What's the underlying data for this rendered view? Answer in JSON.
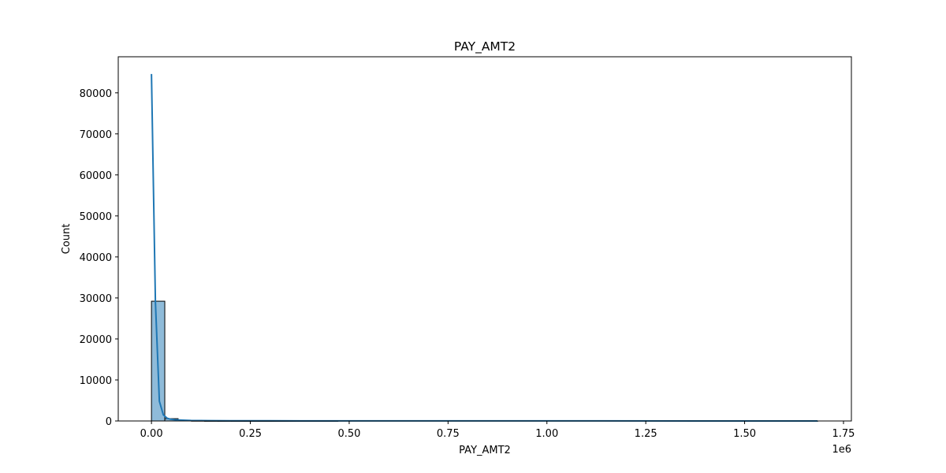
{
  "chart_data": {
    "type": "bar",
    "title": "PAY_AMT2",
    "xlabel": "PAY_AMT2",
    "ylabel": "Count",
    "x_offset_text": "1e6",
    "xlim": [
      -84000,
      1770000
    ],
    "ylim": [
      0,
      88800
    ],
    "x_ticks": [
      0,
      250000,
      500000,
      750000,
      1000000,
      1250000,
      1500000,
      1750000
    ],
    "x_tick_labels": [
      "0.00",
      "0.25",
      "0.50",
      "0.75",
      "1.00",
      "1.25",
      "1.50",
      "1.75"
    ],
    "y_ticks": [
      0,
      10000,
      20000,
      30000,
      40000,
      50000,
      60000,
      70000,
      80000
    ],
    "y_tick_labels": [
      "0",
      "10000",
      "20000",
      "30000",
      "40000",
      "50000",
      "60000",
      "70000",
      "80000"
    ],
    "bins": {
      "start": 0,
      "end": 1684259,
      "count": 50,
      "counts": [
        29200,
        560,
        140,
        50,
        20,
        12,
        8,
        5,
        3,
        2,
        2,
        1,
        1,
        1,
        0,
        0,
        0,
        0,
        0,
        0,
        0,
        0,
        0,
        0,
        0,
        0,
        0,
        0,
        0,
        0,
        0,
        0,
        0,
        0,
        0,
        0,
        0,
        0,
        0,
        0,
        0,
        0,
        0,
        0,
        0,
        0,
        0,
        0,
        0,
        1
      ]
    },
    "kde": {
      "x": [
        0,
        10000,
        20000,
        30000,
        40000,
        50000,
        60000,
        80000,
        100000,
        150000,
        200000,
        300000,
        500000,
        1000000,
        1500000,
        1684259
      ],
      "y": [
        84600,
        29000,
        4800,
        1500,
        650,
        400,
        280,
        180,
        120,
        80,
        60,
        40,
        25,
        15,
        10,
        10
      ]
    },
    "colors": {
      "bar_fill": "#8fbbd9",
      "bar_edge": "#000000",
      "kde_line": "#1f77b4"
    }
  }
}
